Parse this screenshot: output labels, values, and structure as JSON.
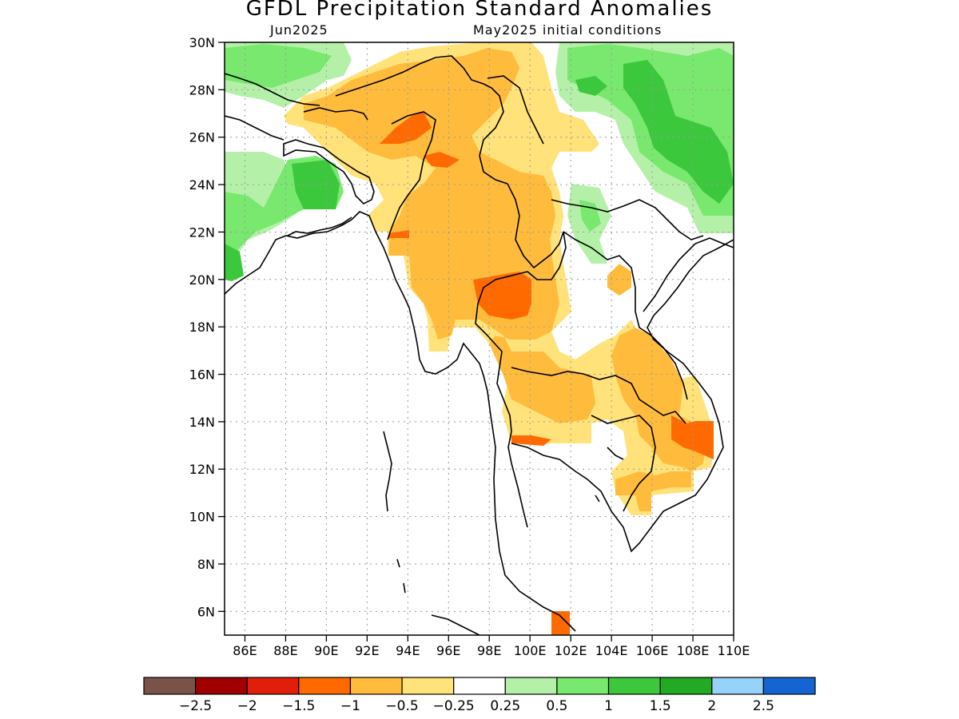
{
  "title": "GFDL Precipitation Standard Anomalies",
  "subtitle_left": "Jun2025",
  "subtitle_right": "May2025 initial conditions",
  "map": {
    "lon_range": [
      85,
      110
    ],
    "lat_range": [
      5,
      30
    ],
    "lat_ticks": [
      "30N",
      "28N",
      "26N",
      "24N",
      "22N",
      "20N",
      "18N",
      "16N",
      "14N",
      "12N",
      "10N",
      "8N",
      "6N"
    ],
    "lon_ticks": [
      "86E",
      "88E",
      "90E",
      "92E",
      "94E",
      "96E",
      "98E",
      "100E",
      "102E",
      "104E",
      "106E",
      "108E",
      "110E"
    ],
    "gridlines": "dotted"
  },
  "colorbar": {
    "colors": [
      "#7a5348",
      "#a00000",
      "#e01e0a",
      "#ff6a00",
      "#ffbb3c",
      "#ffe27a",
      "#ffffff",
      "#b4f0a8",
      "#78e86e",
      "#3cc83c",
      "#22aa22",
      "#96d2fa",
      "#1464d2"
    ],
    "labels": [
      "−2.5",
      "−2",
      "−1.5",
      "−1",
      "−0.5",
      "−0.25",
      "0.25",
      "0.5",
      "1",
      "1.5",
      "2",
      "2.5"
    ]
  }
}
